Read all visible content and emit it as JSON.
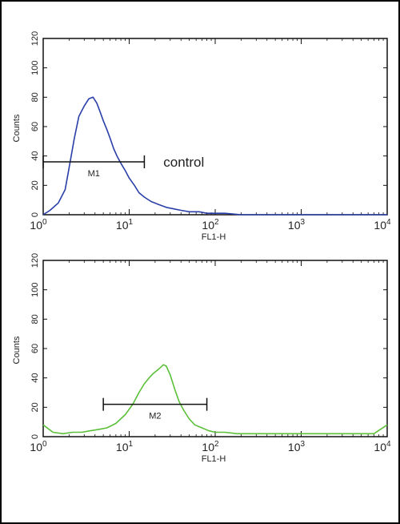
{
  "chart_data": [
    {
      "type": "line",
      "xlabel": "FL1-H",
      "ylabel": "Counts",
      "x_scale": "log",
      "xlim": [
        1,
        10000
      ],
      "ylim": [
        0,
        120
      ],
      "yticks": [
        0,
        20,
        40,
        60,
        80,
        100,
        120
      ],
      "xticks": [
        1,
        10,
        100,
        1000,
        10000
      ],
      "xtick_labels": [
        {
          "base": "10",
          "exp": "0"
        },
        {
          "base": "10",
          "exp": "1"
        },
        {
          "base": "10",
          "exp": "2"
        },
        {
          "base": "10",
          "exp": "3"
        },
        {
          "base": "10",
          "exp": "4"
        }
      ],
      "line_color": "#2a3fa8",
      "series": [
        {
          "x": [
            1.0,
            1.2,
            1.5,
            1.8,
            2.0,
            2.3,
            2.6,
            3.0,
            3.4,
            3.8,
            4.2,
            4.6,
            5.0,
            5.5,
            6.0,
            6.6,
            7.2,
            8.0,
            9.0,
            10.0,
            11.5,
            13.0,
            15.0,
            18.0,
            22.0,
            27.0,
            33.0,
            40.0,
            50.0,
            65.0,
            80.0,
            100.0,
            130.0,
            200.0,
            300.0,
            500.0,
            1000.0,
            2000.0,
            5000.0,
            10000.0
          ],
          "y": [
            0,
            3,
            8,
            17,
            32,
            52,
            67,
            74,
            79,
            80,
            76,
            70,
            64,
            58,
            52,
            45,
            40,
            35,
            30,
            25,
            20,
            15,
            12,
            9,
            7,
            5,
            4,
            3,
            2,
            2,
            1,
            1,
            1,
            0,
            0,
            0,
            0,
            0,
            0,
            0
          ]
        }
      ],
      "gate": {
        "label": "M1",
        "x_start": 1.0,
        "x_end": 15.0,
        "y": 36
      },
      "annotation": {
        "text": "control",
        "x": 25.0,
        "y": 36
      }
    },
    {
      "type": "line",
      "xlabel": "FL1-H",
      "ylabel": "Counts",
      "x_scale": "log",
      "xlim": [
        1,
        10000
      ],
      "ylim": [
        0,
        120
      ],
      "yticks": [
        0,
        20,
        40,
        60,
        80,
        100,
        120
      ],
      "xticks": [
        1,
        10,
        100,
        1000,
        10000
      ],
      "xtick_labels": [
        {
          "base": "10",
          "exp": "0"
        },
        {
          "base": "10",
          "exp": "1"
        },
        {
          "base": "10",
          "exp": "2"
        },
        {
          "base": "10",
          "exp": "3"
        },
        {
          "base": "10",
          "exp": "4"
        }
      ],
      "line_color": "#5cbf3a",
      "series": [
        {
          "x": [
            1.0,
            1.3,
            1.7,
            2.2,
            2.8,
            3.5,
            4.5,
            5.5,
            7.0,
            9.0,
            11.0,
            13.0,
            15.0,
            17.0,
            19.0,
            21.0,
            23.0,
            25.0,
            27.0,
            30.0,
            34.0,
            38.0,
            43.0,
            50.0,
            58.0,
            70.0,
            85.0,
            100.0,
            130.0,
            180.0,
            300.0,
            500.0,
            1000.0,
            2000.0,
            4000.0,
            7000.0,
            10000.0
          ],
          "y": [
            8,
            3,
            2,
            3,
            3,
            4,
            5,
            6,
            9,
            15,
            22,
            30,
            36,
            40,
            43,
            45,
            47,
            49,
            48,
            42,
            32,
            24,
            18,
            12,
            8,
            6,
            4,
            3,
            3,
            2,
            2,
            2,
            2,
            2,
            2,
            2,
            8
          ]
        }
      ],
      "gate": {
        "label": "M2",
        "x_start": 5.0,
        "x_end": 80.0,
        "y": 22
      }
    }
  ]
}
